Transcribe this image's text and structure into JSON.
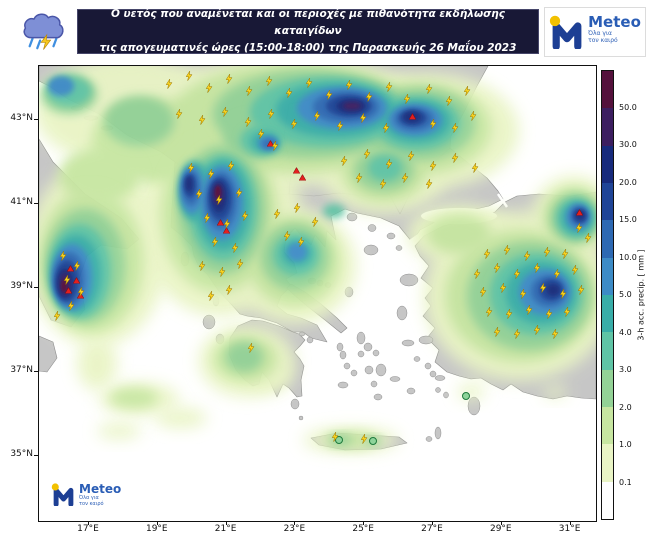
{
  "banner": {
    "line1": "Ο υετός που αναμένεται και οι περιοχές με πιθανότητα εκδήλωσης καταιγίδων",
    "line2": "τις απογευματινές ώρες (15:00-18:00) της Παρασκευής 26 Μαΐου 2023"
  },
  "logo": {
    "name": "Meteo",
    "tagline_line1": "Όλα για",
    "tagline_line2": "τον καιρό"
  },
  "icons": {
    "banner_icon": "storm-cloud-rain-lightning-icon",
    "map_marker_lightning": "lightning-bolt-icon",
    "map_marker_heavy_precip": "red-triangle-icon"
  },
  "map": {
    "lat_ticks": [
      "43°N",
      "41°N",
      "39°N",
      "37°N",
      "35°N"
    ],
    "lon_ticks": [
      "17°E",
      "19°E",
      "21°E",
      "23°E",
      "25°E",
      "27°E",
      "29°E",
      "31°E"
    ]
  },
  "colorbar": {
    "label": "3-h acc. precip. [ mm ]",
    "tick_labels": [
      "50.0",
      "30.0",
      "20.0",
      "15.0",
      "10.0",
      "5.0",
      "4.0",
      "3.0",
      "2.0",
      "1.0",
      "0.1"
    ],
    "segment_colors_top_to_bottom": [
      "#54113c",
      "#3c1e60",
      "#172a7c",
      "#1f4497",
      "#2d69b3",
      "#3c8bc6",
      "#38ada8",
      "#5fc4a5",
      "#93d296",
      "#c7e6a1",
      "#e9f4c5",
      "#ffffff"
    ],
    "accent_colors": {
      "land_gray": "#c6c6c6",
      "lightning_yellow": "#f7d21e",
      "heavy_precip_red": "#e31f1f"
    }
  }
}
